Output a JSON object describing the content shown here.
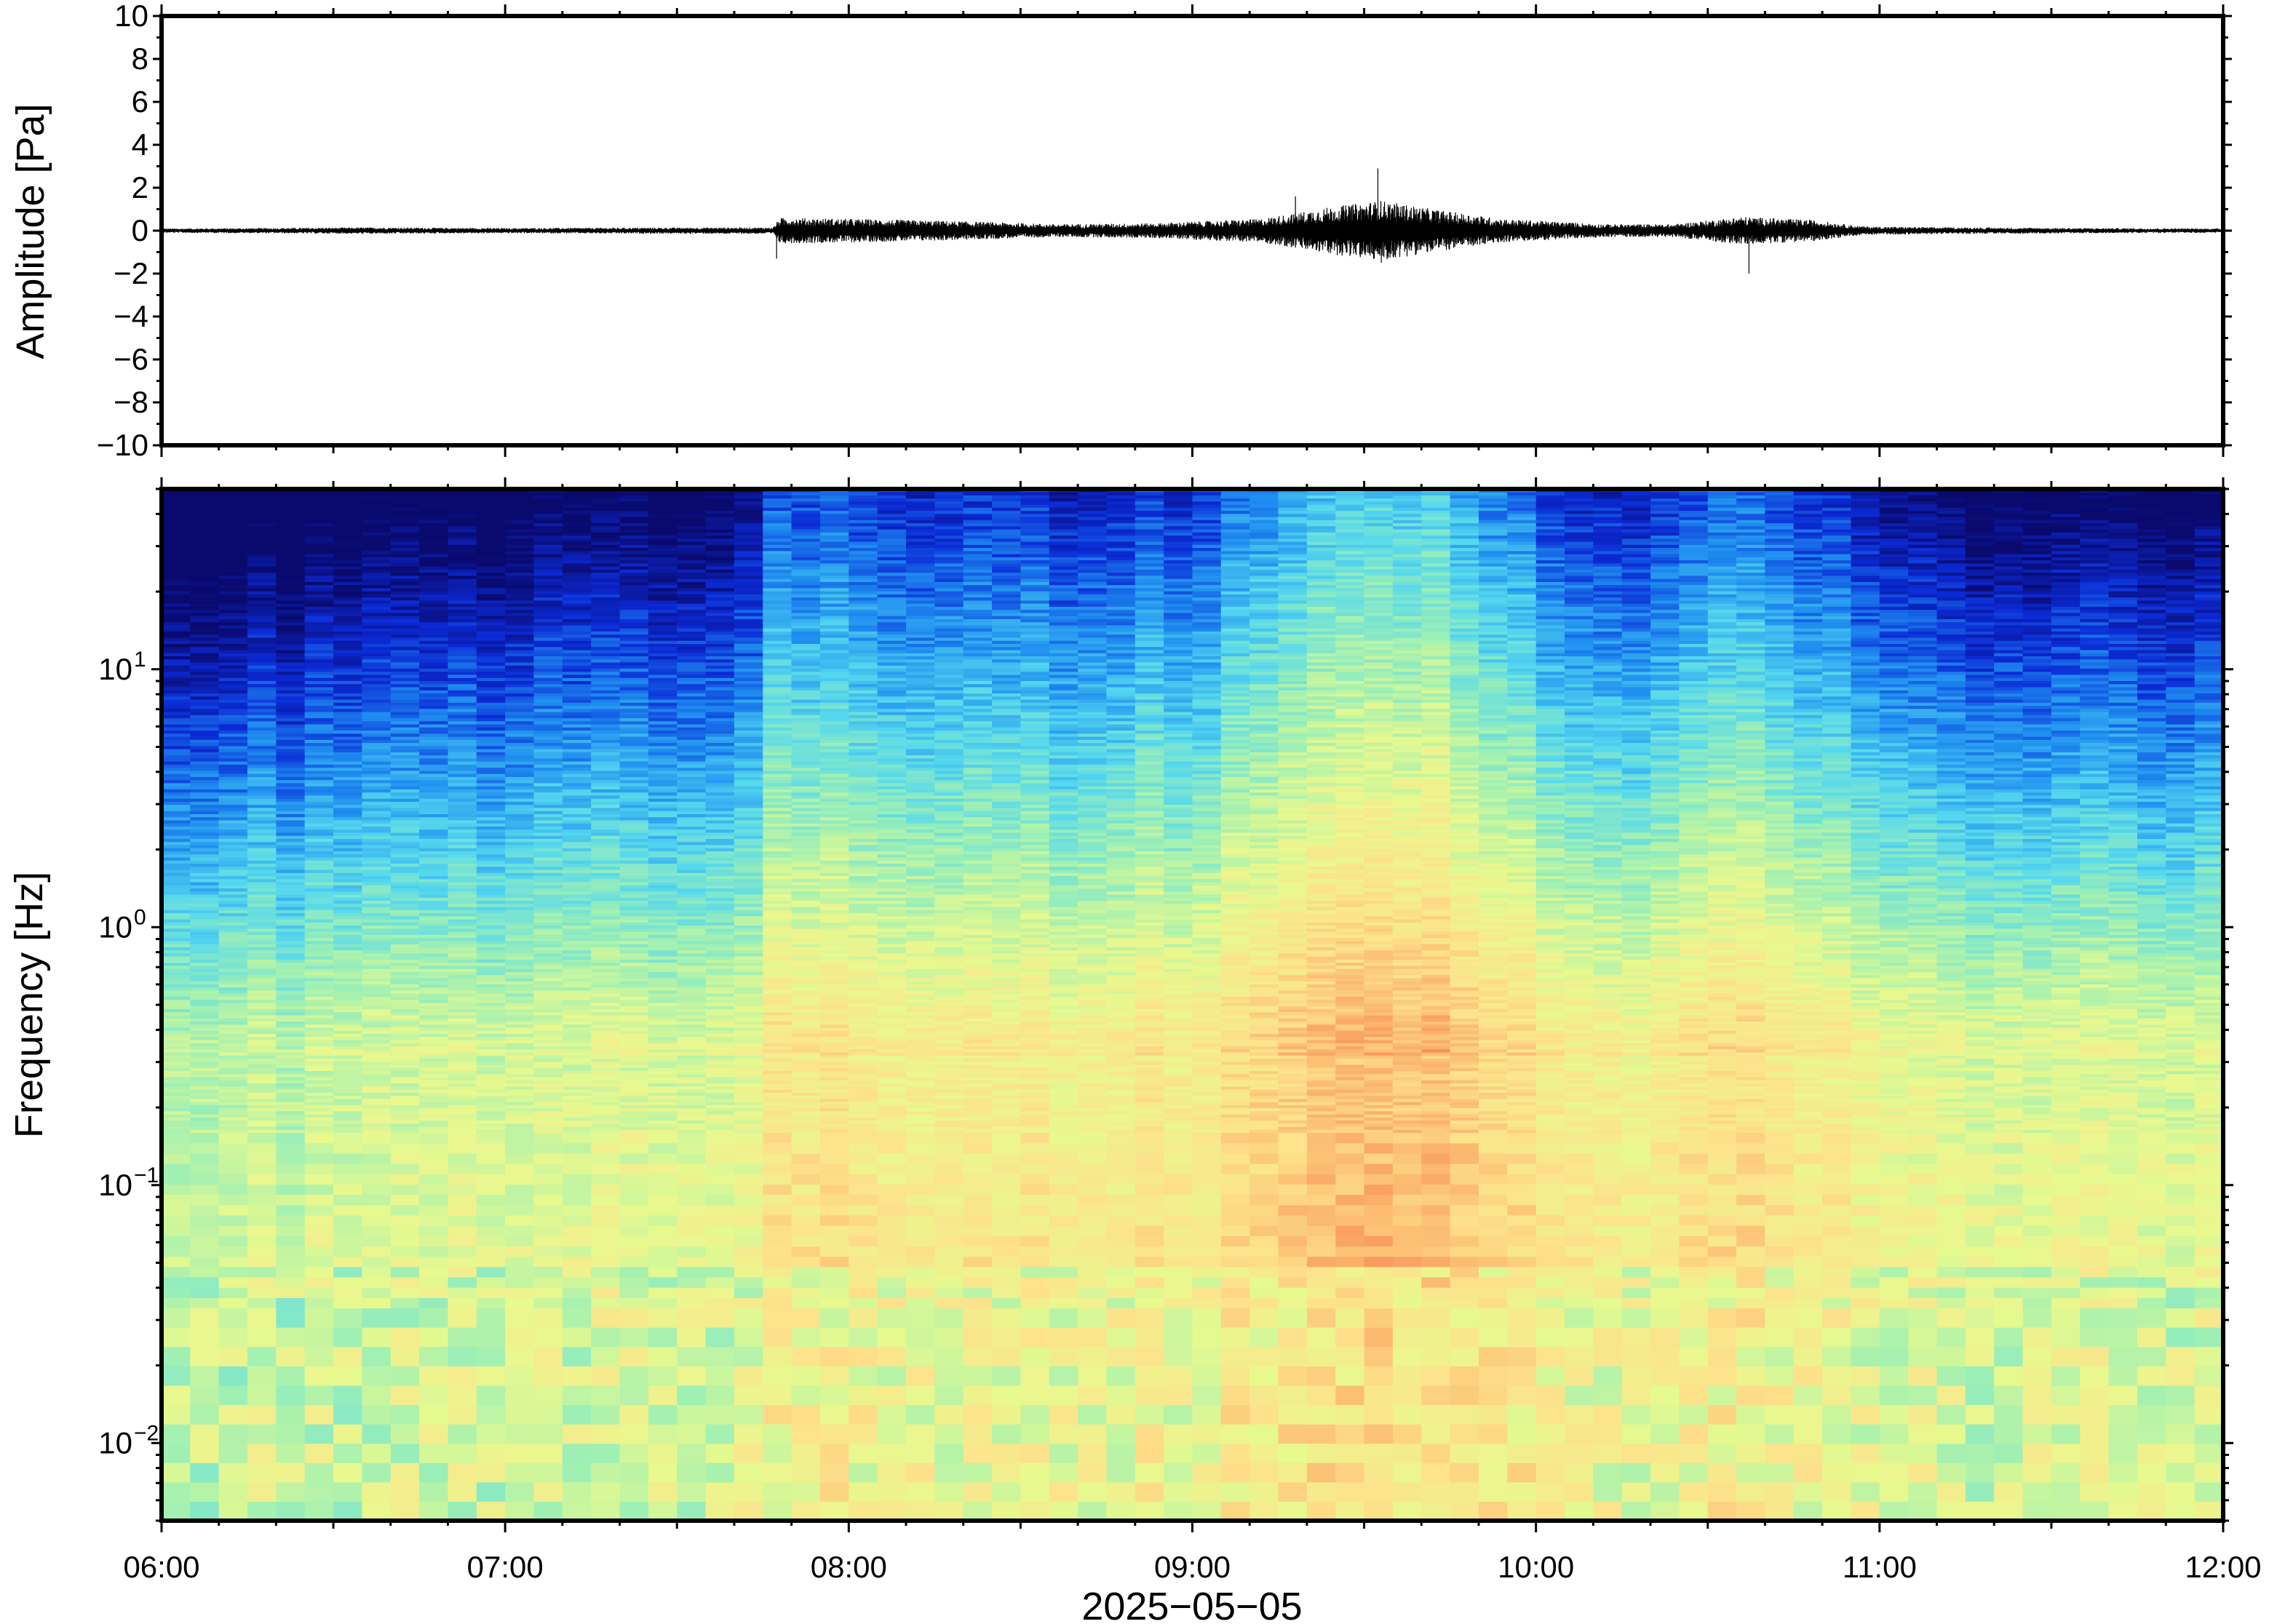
{
  "chart_data": [
    {
      "type": "line",
      "ylabel": "Amplitude [Pa]",
      "ylim": [
        -10,
        10
      ],
      "yticks": [
        10,
        8,
        6,
        4,
        2,
        0,
        -2,
        -4,
        -6,
        -8,
        -10
      ],
      "ytick_labels": [
        "10",
        "8",
        "6",
        "4",
        "2",
        "0",
        "−2",
        "−4",
        "−6",
        "−8",
        "−10"
      ],
      "x_range_hours": [
        6,
        12
      ],
      "baseline": 0,
      "envelope": {
        "description_points_hours": [
          6.0,
          6.3,
          6.6,
          7.0,
          7.4,
          7.78,
          7.8,
          8.0,
          8.3,
          8.6,
          8.9,
          9.2,
          9.4,
          9.55,
          9.7,
          9.9,
          10.2,
          10.4,
          10.6,
          10.8,
          10.95,
          11.2,
          11.6,
          12.0
        ],
        "amplitude_pa": [
          0.1,
          0.12,
          0.15,
          0.12,
          0.14,
          0.15,
          0.6,
          0.55,
          0.45,
          0.3,
          0.35,
          0.55,
          1.1,
          1.4,
          1.0,
          0.55,
          0.3,
          0.3,
          0.65,
          0.5,
          0.2,
          0.15,
          0.12,
          0.1
        ]
      },
      "spikes": [
        {
          "x": 9.54,
          "y": 2.9
        },
        {
          "x": 9.3,
          "y": 1.6
        },
        {
          "x": 7.79,
          "y": -1.3
        },
        {
          "x": 10.62,
          "y": -2.0
        },
        {
          "x": 9.55,
          "y": -1.5
        }
      ]
    },
    {
      "type": "heatmap",
      "ylabel": "Frequency [Hz]",
      "yscale": "log",
      "ylim": [
        0.005,
        50
      ],
      "yticks": [
        0.01,
        0.1,
        1,
        10
      ],
      "ytick_mantissa": [
        "10",
        "10",
        "10",
        "10"
      ],
      "ytick_exponents": [
        "−2",
        "−1",
        "0",
        "1"
      ],
      "xlabel": "2025−05−05",
      "xticks": [
        "06:00",
        "07:00",
        "08:00",
        "09:00",
        "10:00",
        "11:00",
        "12:00"
      ],
      "x_range_hours": [
        6,
        12
      ],
      "colormap": [
        "#0a0a6e",
        "#0b2ad6",
        "#1f8ef0",
        "#55d8ee",
        "#9ff0b4",
        "#e8f98e",
        "#fde28c",
        "#fbb06a",
        "#f06a44"
      ],
      "activity_profile": {
        "hours": [
          6.0,
          6.4,
          6.6,
          7.0,
          7.4,
          7.7,
          7.8,
          8.3,
          8.7,
          9.0,
          9.3,
          9.55,
          9.8,
          10.1,
          10.3,
          10.45,
          10.7,
          10.9,
          11.2,
          11.5,
          11.8,
          12.0
        ],
        "level": [
          0.15,
          0.2,
          0.3,
          0.28,
          0.3,
          0.35,
          0.6,
          0.55,
          0.5,
          0.58,
          0.75,
          0.95,
          0.78,
          0.55,
          0.42,
          0.62,
          0.6,
          0.52,
          0.35,
          0.3,
          0.32,
          0.3
        ]
      }
    }
  ]
}
